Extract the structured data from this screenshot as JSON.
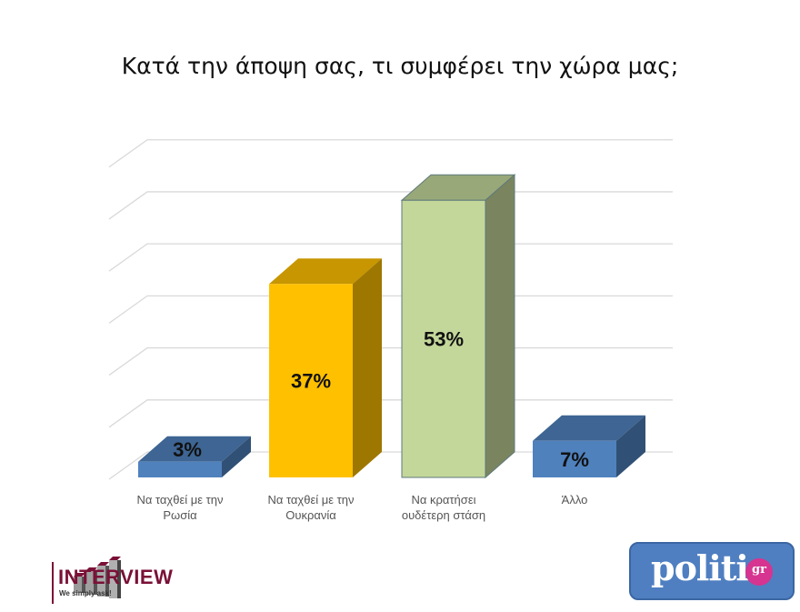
{
  "title": "Κατά την άποψη σας, τι συμφέρει την χώρα μας;",
  "chart_data": {
    "type": "bar",
    "title": "Κατά την άποψη σας, τι συμφέρει την χώρα μας;",
    "categories": [
      "Να ταχθεί με την Ρωσία",
      "Να ταχθεί με την Ουκρανία",
      "Να κρατήσει ουδέτερη στάση",
      "Άλλο"
    ],
    "values": [
      3,
      37,
      53,
      7
    ],
    "labels": [
      "3%",
      "37%",
      "53%",
      "7%"
    ],
    "colors": [
      "#4f81bd",
      "#ffc000",
      "#c4d79b",
      "#4f81bd"
    ],
    "xlabel": "",
    "ylabel": "",
    "ylim": [
      0,
      60
    ],
    "grid": true,
    "style": "3d-column",
    "legend": "none"
  },
  "categories_display": [
    {
      "line1": "Να ταχθεί με την",
      "line2": "Ρωσία"
    },
    {
      "line1": "Να ταχθεί με την",
      "line2": "Ουκρανία"
    },
    {
      "line1": "Να κρατήσει",
      "line2": "ουδέτερη στάση"
    },
    {
      "line1": "Άλλο",
      "line2": ""
    }
  ],
  "logos": {
    "interview": {
      "name": "INTERVIEW",
      "tagline": "We simply ask!"
    },
    "politic": {
      "name": "politic",
      "suffix": "gr"
    }
  }
}
